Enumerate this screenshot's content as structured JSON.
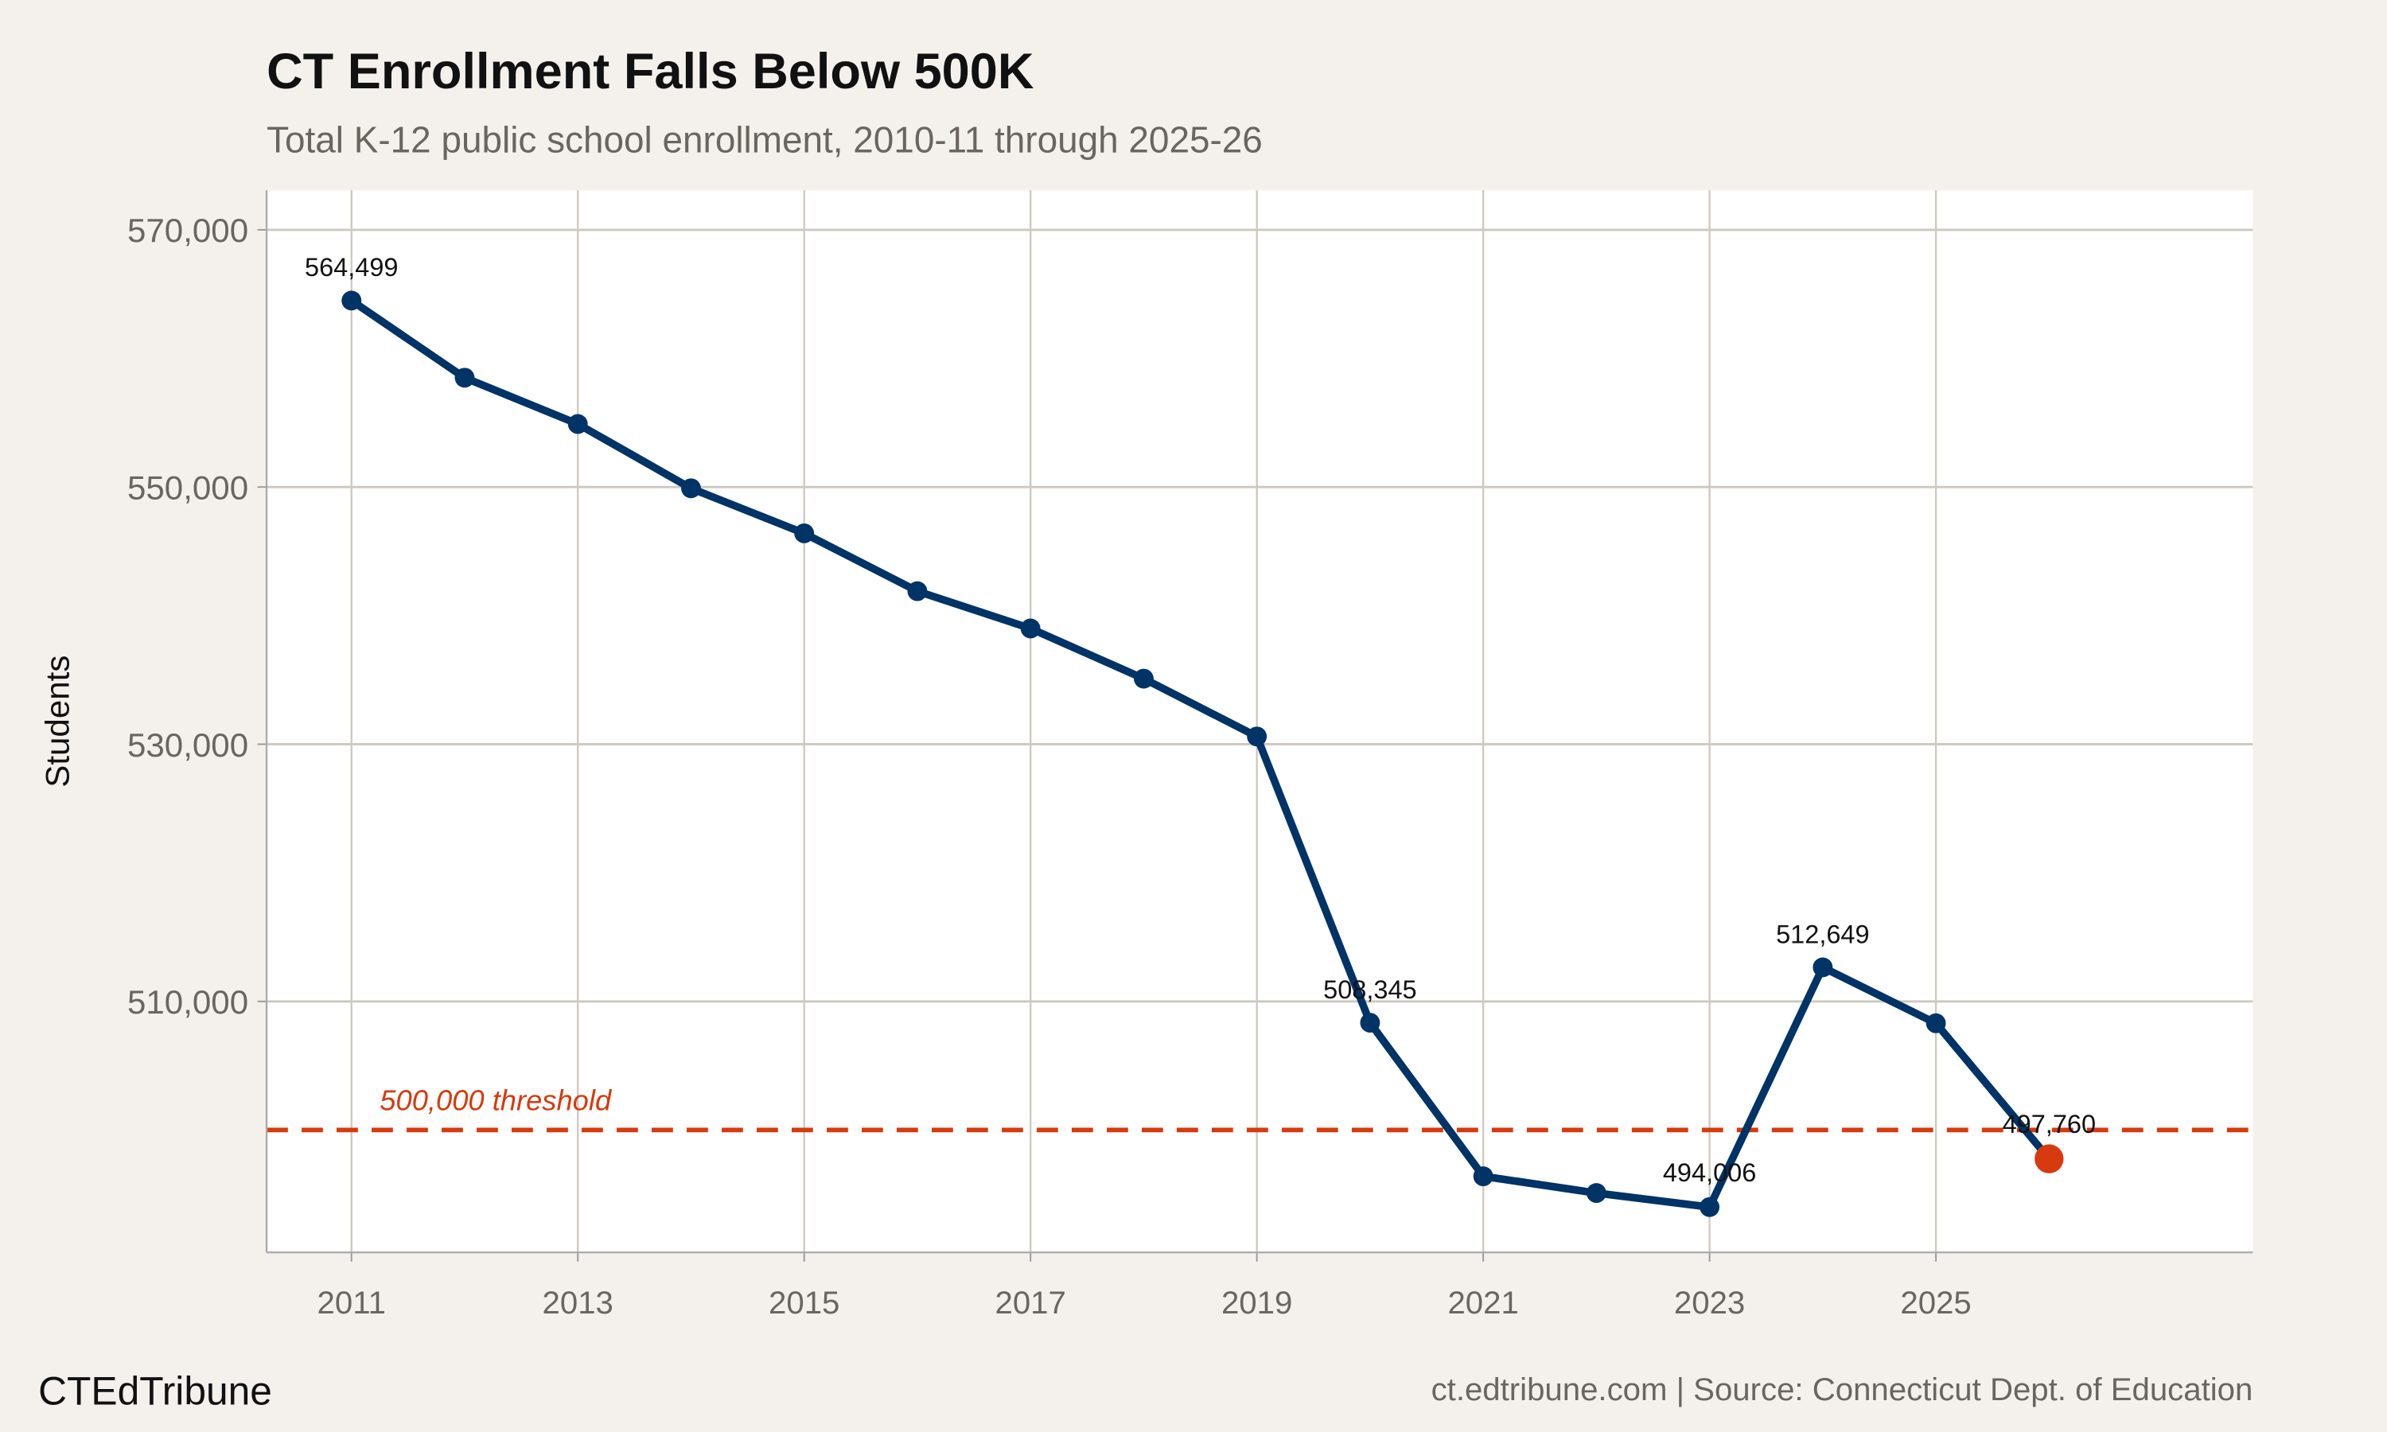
{
  "chart_data": {
    "type": "line",
    "title": "CT Enrollment Falls Below 500K",
    "subtitle": "Total K-12 public school enrollment, 2010-11 through 2025-26",
    "xlabel": "",
    "ylabel": "Students",
    "x": [
      2011,
      2012,
      2013,
      2014,
      2015,
      2016,
      2017,
      2018,
      2019,
      2020,
      2021,
      2022,
      2023,
      2024,
      2025,
      2026
    ],
    "values": [
      564499,
      558500,
      554900,
      549900,
      546400,
      541900,
      539000,
      535100,
      530600,
      508345,
      496400,
      495100,
      494006,
      512649,
      508300,
      497760
    ],
    "data_labels": [
      {
        "x": 2011,
        "text": "564,499"
      },
      {
        "x": 2020,
        "text": "508,345"
      },
      {
        "x": 2023,
        "text": "494,006"
      },
      {
        "x": 2024,
        "text": "512,649"
      },
      {
        "x": 2026,
        "text": "497,760"
      }
    ],
    "xlim": [
      2010.25,
      2027.8
    ],
    "ylim": [
      490480,
      573080
    ],
    "xticks": [
      2011,
      2013,
      2015,
      2017,
      2019,
      2021,
      2023,
      2025
    ],
    "xtick_labels": [
      "2011",
      "2013",
      "2015",
      "2017",
      "2019",
      "2021",
      "2023",
      "2025"
    ],
    "yticks": [
      510000,
      530000,
      550000,
      570000
    ],
    "ytick_labels": [
      "510,000",
      "530,000",
      "550,000",
      "570,000"
    ],
    "grid": true,
    "threshold": {
      "value": 500000,
      "label": "500,000 threshold"
    },
    "colors": {
      "line": "#003366",
      "highlight": "#d63a0e",
      "threshold": "#d63a0e",
      "grid": "#cdc8c0",
      "panel": "#ffffff",
      "background": "#f4f1ec"
    }
  },
  "footer": {
    "brand": "CTEdTribune",
    "source": "ct.edtribune.com | Source: Connecticut Dept. of Education"
  }
}
